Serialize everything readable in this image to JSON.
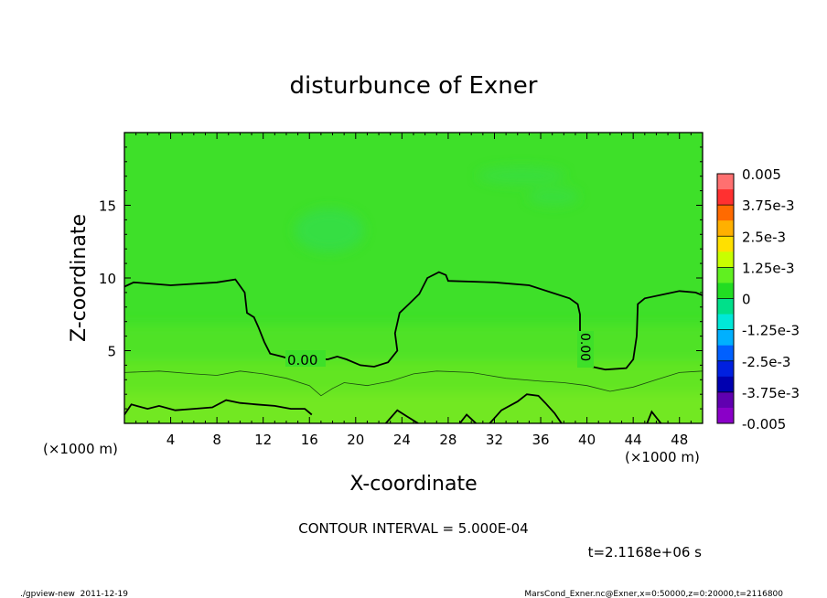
{
  "chart_data": {
    "type": "heatmap",
    "title": "disturbunce of Exner",
    "xlabel": "X-coordinate",
    "ylabel": "Z-coordinate",
    "x_unit_left": "(×1000 m)",
    "x_unit_right": "(×1000 m)",
    "xlim": [
      0,
      50
    ],
    "ylim": [
      0,
      20
    ],
    "x_ticks": [
      4,
      8,
      12,
      16,
      20,
      24,
      28,
      32,
      36,
      40,
      44,
      48
    ],
    "y_ticks": [
      5,
      10,
      15
    ],
    "contour_label": "0.00",
    "contour_label_vertical": "0.00",
    "contour_interval_text": "CONTOUR INTERVAL = 5.000E-04",
    "time_text": "t=2.1168e+06 s",
    "footer_left": "./gpview-new  2011-12-19",
    "footer_right": "MarsCond_Exner.nc@Exner,x=0:50000,z=0:20000,t=2116800",
    "colorbar": {
      "labels": [
        "0.005",
        "3.75e-3",
        "2.5e-3",
        "1.25e-3",
        "0",
        "-1.25e-3",
        "-2.5e-3",
        "-3.75e-3",
        "-0.005"
      ],
      "colors": [
        "#ff7070",
        "#ff3030",
        "#ff6a00",
        "#ffb000",
        "#ffe000",
        "#c8ff00",
        "#60f020",
        "#22dd22",
        "#00e08a",
        "#00e8d8",
        "#00b0ff",
        "#0060ff",
        "#0020e0",
        "#0000b0",
        "#6000b0",
        "#8a00c8"
      ]
    },
    "zero_contour": [
      [
        0.0,
        9.4
      ],
      [
        0.8,
        9.7
      ],
      [
        4.0,
        9.5
      ],
      [
        8.0,
        9.7
      ],
      [
        9.6,
        9.9
      ],
      [
        10.4,
        9.0
      ],
      [
        10.6,
        7.6
      ],
      [
        11.2,
        7.3
      ],
      [
        11.6,
        6.6
      ],
      [
        12.1,
        5.6
      ],
      [
        12.6,
        4.8
      ],
      [
        13.6,
        4.6
      ],
      [
        14.0,
        4.5
      ],
      [
        17.6,
        4.4
      ],
      [
        18.4,
        4.6
      ],
      [
        19.2,
        4.4
      ],
      [
        20.4,
        4.0
      ],
      [
        21.6,
        3.9
      ],
      [
        22.8,
        4.2
      ],
      [
        23.6,
        5.0
      ],
      [
        23.4,
        6.2
      ],
      [
        23.8,
        7.6
      ],
      [
        24.6,
        8.2
      ],
      [
        25.5,
        8.9
      ],
      [
        26.2,
        10.0
      ],
      [
        27.2,
        10.4
      ],
      [
        27.8,
        10.2
      ],
      [
        28.0,
        9.8
      ],
      [
        32.0,
        9.7
      ],
      [
        35.0,
        9.5
      ],
      [
        38.5,
        8.6
      ],
      [
        39.2,
        8.2
      ],
      [
        39.4,
        7.5
      ],
      [
        39.4,
        6.4
      ],
      [
        39.8,
        4.8
      ],
      [
        40.4,
        3.9
      ],
      [
        41.6,
        3.7
      ],
      [
        43.4,
        3.8
      ],
      [
        44.0,
        4.4
      ],
      [
        44.3,
        6.0
      ],
      [
        44.4,
        8.2
      ],
      [
        45.0,
        8.6
      ],
      [
        48.0,
        9.1
      ],
      [
        49.4,
        9.0
      ],
      [
        50.0,
        8.8
      ]
    ],
    "thin_contour": [
      [
        0.0,
        3.5
      ],
      [
        3.0,
        3.6
      ],
      [
        6.0,
        3.4
      ],
      [
        8.0,
        3.3
      ],
      [
        10.0,
        3.6
      ],
      [
        12.0,
        3.4
      ],
      [
        14.0,
        3.1
      ],
      [
        16.0,
        2.6
      ],
      [
        17.0,
        1.9
      ],
      [
        18.0,
        2.4
      ],
      [
        19.0,
        2.8
      ],
      [
        21.0,
        2.6
      ],
      [
        23.0,
        2.9
      ],
      [
        25.0,
        3.4
      ],
      [
        27.0,
        3.6
      ],
      [
        30.0,
        3.5
      ],
      [
        33.0,
        3.1
      ],
      [
        36.0,
        2.9
      ],
      [
        38.0,
        2.8
      ],
      [
        40.0,
        2.6
      ],
      [
        42.0,
        2.2
      ],
      [
        44.0,
        2.5
      ],
      [
        46.0,
        3.0
      ],
      [
        48.0,
        3.5
      ],
      [
        50.0,
        3.6
      ]
    ],
    "bottom_contours": [
      [
        [
          0.0,
          0.6
        ],
        [
          0.6,
          1.3
        ],
        [
          2.0,
          1.0
        ],
        [
          3.0,
          1.2
        ],
        [
          4.4,
          0.9
        ],
        [
          6.0,
          1.0
        ],
        [
          7.6,
          1.1
        ],
        [
          8.8,
          1.6
        ],
        [
          10.0,
          1.4
        ],
        [
          11.4,
          1.3
        ],
        [
          13.0,
          1.2
        ],
        [
          14.4,
          1.0
        ],
        [
          15.6,
          1.0
        ],
        [
          16.2,
          0.6
        ]
      ],
      [
        [
          22.6,
          0.0
        ],
        [
          23.6,
          0.9
        ],
        [
          24.4,
          0.5
        ],
        [
          25.4,
          0.0
        ]
      ],
      [
        [
          29.0,
          0.0
        ],
        [
          29.6,
          0.6
        ],
        [
          30.4,
          0.0
        ]
      ],
      [
        [
          31.6,
          0.0
        ],
        [
          32.6,
          0.9
        ],
        [
          34.0,
          1.5
        ],
        [
          34.8,
          2.0
        ],
        [
          35.8,
          1.9
        ],
        [
          36.4,
          1.4
        ],
        [
          37.2,
          0.7
        ],
        [
          37.8,
          0.0
        ]
      ],
      [
        [
          45.2,
          0.0
        ],
        [
          45.6,
          0.8
        ],
        [
          46.4,
          0.0
        ]
      ]
    ]
  }
}
